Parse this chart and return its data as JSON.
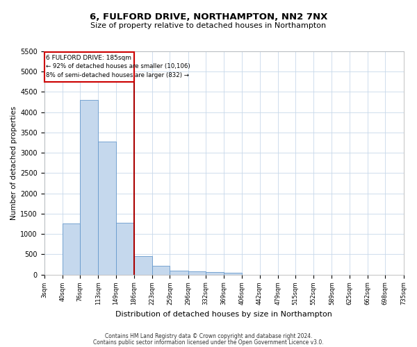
{
  "title": "6, FULFORD DRIVE, NORTHAMPTON, NN2 7NX",
  "subtitle": "Size of property relative to detached houses in Northampton",
  "xlabel": "Distribution of detached houses by size in Northampton",
  "ylabel": "Number of detached properties",
  "footnote1": "Contains HM Land Registry data © Crown copyright and database right 2024.",
  "footnote2": "Contains public sector information licensed under the Open Government Licence v3.0.",
  "bar_color": "#c5d8ed",
  "bar_edge_color": "#6699cc",
  "marker_color": "#aa0000",
  "annotation_title": "6 FULFORD DRIVE: 185sqm",
  "annotation_line1": "← 92% of detached houses are smaller (10,106)",
  "annotation_line2": "8% of semi-detached houses are larger (832) →",
  "categories": [
    "3sqm",
    "40sqm",
    "76sqm",
    "113sqm",
    "149sqm",
    "186sqm",
    "223sqm",
    "259sqm",
    "296sqm",
    "332sqm",
    "369sqm",
    "406sqm",
    "442sqm",
    "479sqm",
    "515sqm",
    "552sqm",
    "589sqm",
    "625sqm",
    "662sqm",
    "698sqm",
    "735sqm"
  ],
  "values": [
    0,
    1250,
    4300,
    3280,
    1280,
    460,
    210,
    100,
    70,
    55,
    40,
    0,
    0,
    0,
    0,
    0,
    0,
    0,
    0,
    0,
    0
  ],
  "bin_edges": [
    3,
    40,
    76,
    113,
    149,
    186,
    223,
    259,
    296,
    332,
    369,
    406,
    442,
    479,
    515,
    552,
    589,
    625,
    662,
    698,
    735
  ],
  "ylim": [
    0,
    5500
  ],
  "yticks": [
    0,
    500,
    1000,
    1500,
    2000,
    2500,
    3000,
    3500,
    4000,
    4500,
    5000,
    5500
  ],
  "title_fontsize": 9.5,
  "subtitle_fontsize": 8,
  "ylabel_fontsize": 7.5,
  "xlabel_fontsize": 8,
  "ytick_fontsize": 7,
  "xtick_fontsize": 6,
  "footnote_fontsize": 5.5,
  "background_color": "#ffffff",
  "grid_color": "#c8d8ea",
  "ann_box_color": "#cc0000"
}
